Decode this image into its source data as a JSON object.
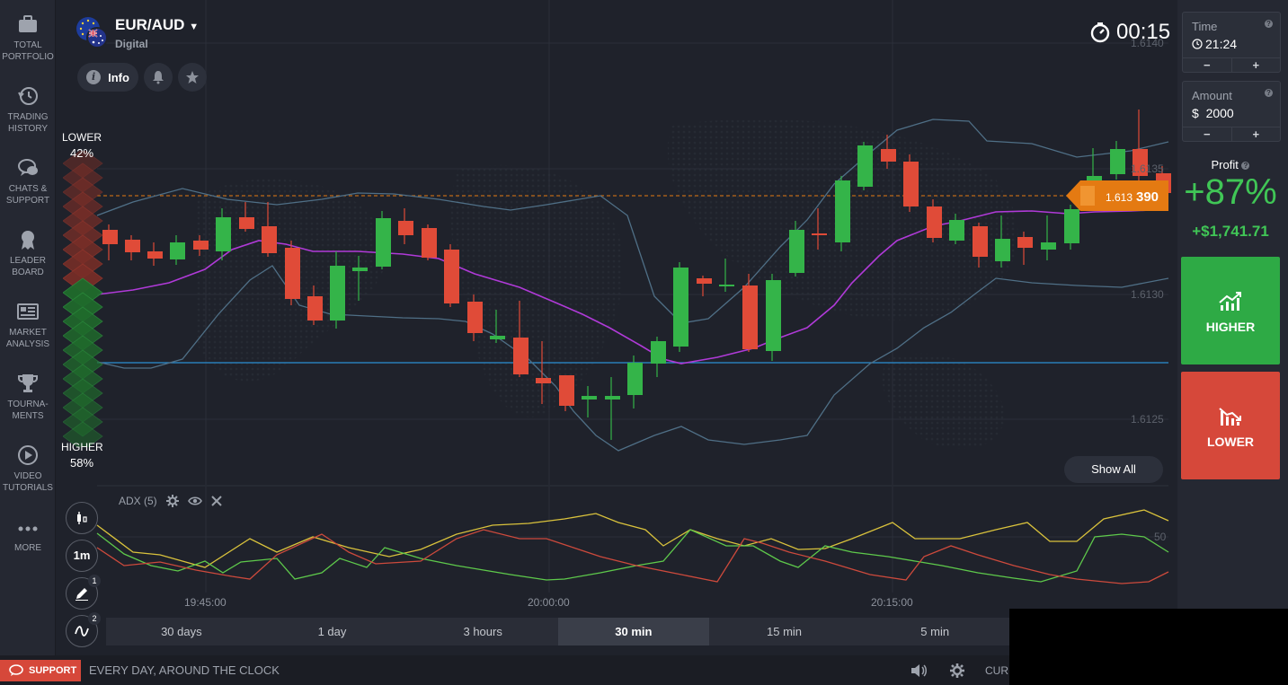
{
  "sidebar": {
    "items": [
      {
        "label": "TOTAL\nPORTFOLIO",
        "icon": "briefcase-icon"
      },
      {
        "label": "TRADING\nHISTORY",
        "icon": "history-icon"
      },
      {
        "label": "CHATS &\nSUPPORT",
        "icon": "chat-icon"
      },
      {
        "label": "LEADER\nBOARD",
        "icon": "leaderboard-icon"
      },
      {
        "label": "MARKET\nANALYSIS",
        "icon": "newspaper-icon"
      },
      {
        "label": "TOURNA-\nMENTS",
        "icon": "trophy-icon"
      },
      {
        "label": "VIDEO\nTUTORIALS",
        "icon": "play-icon"
      },
      {
        "label": "MORE",
        "icon": "more-icon"
      }
    ]
  },
  "asset": {
    "name": "EUR/AUD",
    "type": "Digital"
  },
  "header": {
    "info_label": "Info"
  },
  "timer": "00:15",
  "indicator": {
    "lower_label": "LOWER",
    "lower_pct": "42%",
    "higher_label": "HIGHER",
    "higher_pct": "58%"
  },
  "price": {
    "current_small": "1.613",
    "current_big": "390"
  },
  "price_axis": [
    "1.6140",
    "1.6135",
    "1.6130",
    "1.6125"
  ],
  "time_axis": [
    "19:45:00",
    "20:00:00",
    "20:15:00"
  ],
  "adx": {
    "label": "ADX (5)",
    "axis_label": "50"
  },
  "show_all": "Show All",
  "tools": {
    "chart_type_badge": "",
    "interval": "1m",
    "draw_badge": "1",
    "indicator_badge": "2"
  },
  "timeframes": [
    "30 days",
    "1 day",
    "3 hours",
    "30 min",
    "15 min",
    "5 min"
  ],
  "active_timeframe": "30 min",
  "right_panel": {
    "time_label": "Time",
    "time_value": "21:24",
    "amount_label": "Amount",
    "amount_value": "$  2000",
    "minus": "−",
    "plus": "+",
    "profit_label": "Profit",
    "profit_pct": "+87%",
    "profit_amount": "+$1,741.71",
    "higher_label": "HIGHER",
    "lower_label": "LOWER"
  },
  "footer": {
    "support": "SUPPORT",
    "text": "EVERY DAY, AROUND THE CLOCK",
    "cur": "CUR"
  },
  "colors": {
    "up": "#34b449",
    "down": "#e04b38",
    "bg": "#1f222b",
    "accent_orange": "#e47a12",
    "ma": "#b03ad8",
    "bollinger": "#4f6f86",
    "level_line": "#2a8fd3"
  }
}
